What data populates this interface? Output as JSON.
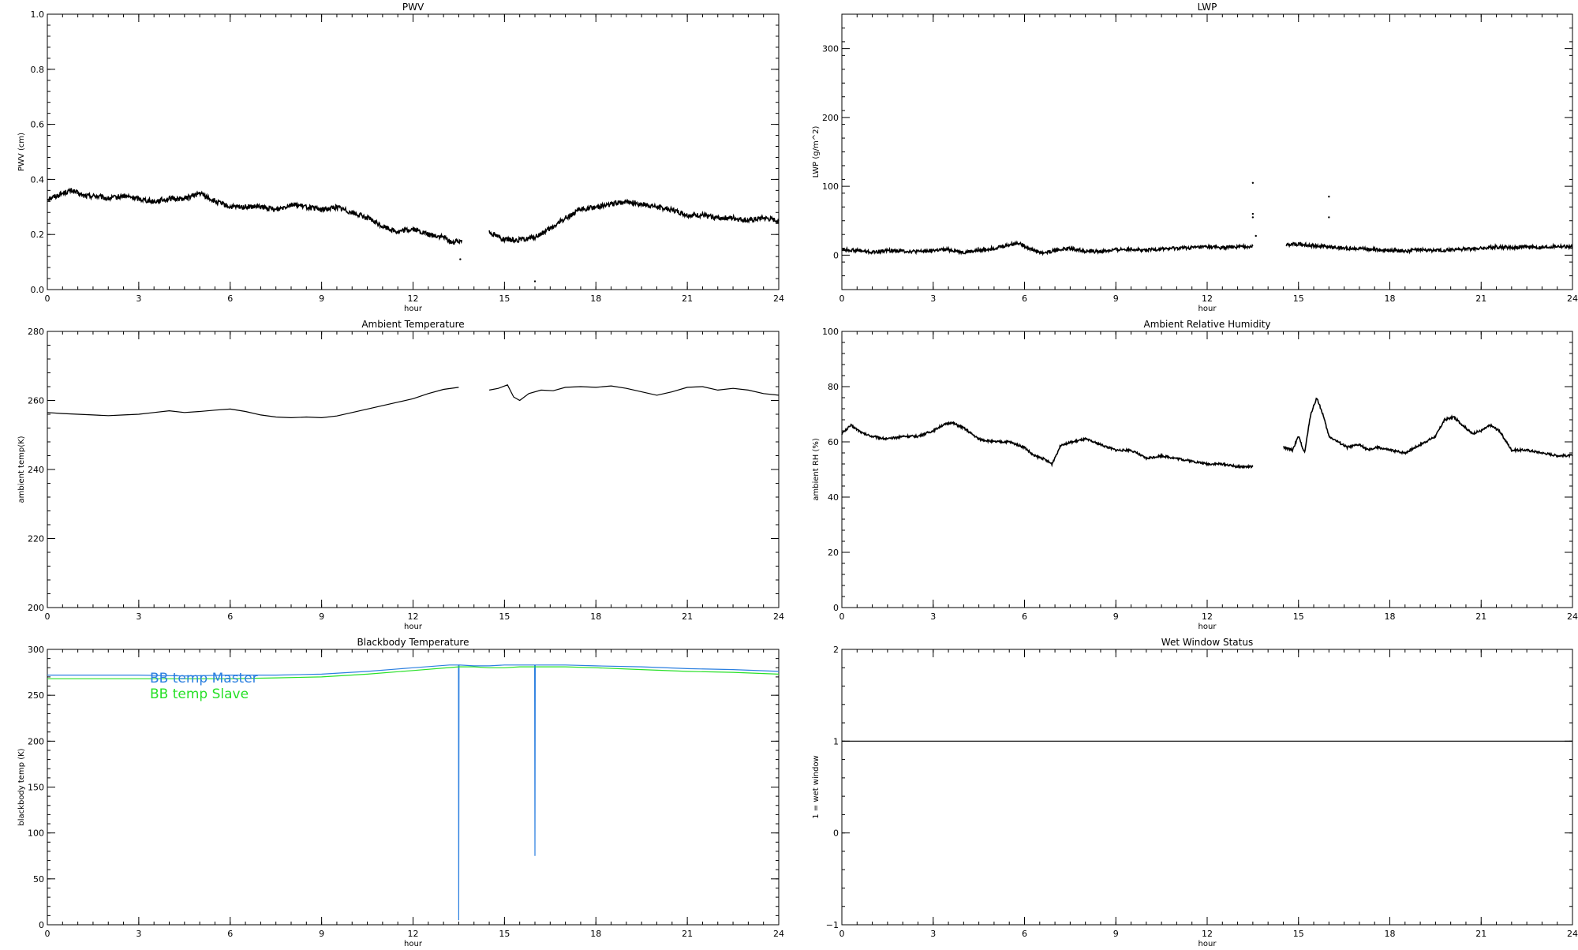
{
  "colors": {
    "axis": "#000000",
    "data": "#000000",
    "master": "#2b7fe0",
    "slave": "#27e027"
  },
  "chart_data": [
    {
      "id": "pwv",
      "type": "scatter",
      "title": "PWV",
      "xlabel": "hour",
      "ylabel": "PWV (cm)",
      "xlim": [
        0,
        24
      ],
      "ylim": [
        0,
        1
      ],
      "xticks": [
        "0",
        "3",
        "6",
        "9",
        "12",
        "15",
        "18",
        "21",
        "24"
      ],
      "yticks": [
        "0.0",
        "0.2",
        "0.4",
        "0.6",
        "0.8",
        "1.0"
      ],
      "series": [
        {
          "color": "#000000",
          "noise": 0.009,
          "x": [
            0,
            0.3,
            0.5,
            0.8,
            1.2,
            1.6,
            2,
            2.5,
            3,
            3.5,
            4,
            4.5,
            5,
            5.5,
            6,
            6.5,
            7,
            7.5,
            8,
            8.5,
            9,
            9.5,
            10,
            10.5,
            11,
            11.5,
            12,
            12.5,
            13,
            13.3,
            13.6,
            null,
            14.5,
            15,
            15.5,
            16,
            16.5,
            17,
            17.5,
            18,
            18.5,
            19,
            19.5,
            20,
            20.5,
            21,
            21.5,
            22,
            22.5,
            23,
            23.5,
            24
          ],
          "y": [
            0.33,
            0.34,
            0.35,
            0.36,
            0.34,
            0.34,
            0.33,
            0.34,
            0.33,
            0.32,
            0.33,
            0.33,
            0.35,
            0.32,
            0.3,
            0.3,
            0.3,
            0.29,
            0.31,
            0.3,
            0.29,
            0.3,
            0.28,
            0.26,
            0.23,
            0.21,
            0.22,
            0.2,
            0.19,
            0.17,
            0.18,
            null,
            0.21,
            0.18,
            0.18,
            0.19,
            0.22,
            0.26,
            0.29,
            0.3,
            0.31,
            0.32,
            0.31,
            0.3,
            0.29,
            0.27,
            0.27,
            0.26,
            0.26,
            0.25,
            0.26,
            0.25
          ]
        }
      ],
      "points": [
        [
          13.55,
          0.11
        ],
        [
          16.0,
          0.03
        ]
      ]
    },
    {
      "id": "lwp",
      "type": "scatter",
      "title": "LWP",
      "xlabel": "hour",
      "ylabel": "LWP (g/m^2)",
      "xlim": [
        0,
        24
      ],
      "ylim": [
        -50,
        350
      ],
      "xticks": [
        "0",
        "3",
        "6",
        "9",
        "12",
        "15",
        "18",
        "21",
        "24"
      ],
      "yticks": [
        "0",
        "100",
        "200",
        "300"
      ],
      "series": [
        {
          "color": "#000000",
          "noise": 2.5,
          "x": [
            0,
            0.5,
            1,
            1.5,
            2,
            2.5,
            3,
            3.5,
            4,
            4.5,
            5,
            5.5,
            5.8,
            6.2,
            6.6,
            7,
            7.5,
            8,
            8.5,
            9,
            9.5,
            10,
            10.5,
            11,
            11.5,
            12,
            12.5,
            13,
            13.5,
            null,
            14.6,
            15,
            15.5,
            16,
            16.5,
            17,
            17.5,
            18,
            18.5,
            19,
            19.5,
            20,
            20.5,
            21,
            21.5,
            22,
            22.5,
            23,
            23.5,
            24
          ],
          "y": [
            8,
            7,
            4,
            7,
            6,
            5,
            7,
            8,
            4,
            7,
            10,
            15,
            18,
            9,
            3,
            7,
            10,
            6,
            5,
            8,
            9,
            7,
            9,
            10,
            11,
            12,
            11,
            12,
            13,
            null,
            15,
            16,
            14,
            12,
            10,
            10,
            8,
            7,
            6,
            8,
            7,
            8,
            9,
            10,
            12,
            11,
            12,
            11,
            13,
            12
          ]
        }
      ],
      "points": [
        [
          13.5,
          105
        ],
        [
          13.5,
          60
        ],
        [
          13.5,
          55
        ],
        [
          13.6,
          28
        ],
        [
          16.0,
          85
        ],
        [
          16.0,
          55
        ]
      ]
    },
    {
      "id": "ambient-temp",
      "type": "line",
      "title": "Ambient Temperature",
      "xlabel": "hour",
      "ylabel": "ambient temp(K)",
      "xlim": [
        0,
        24
      ],
      "ylim": [
        200,
        280
      ],
      "xticks": [
        "0",
        "3",
        "6",
        "9",
        "12",
        "15",
        "18",
        "21",
        "24"
      ],
      "yticks": [
        "200",
        "220",
        "240",
        "260",
        "280"
      ],
      "series": [
        {
          "color": "#000000",
          "noise": 0,
          "x": [
            0,
            0.5,
            1,
            1.5,
            2,
            2.5,
            3,
            3.5,
            4,
            4.5,
            5,
            5.5,
            6,
            6.5,
            7,
            7.5,
            8,
            8.5,
            9,
            9.5,
            10,
            10.5,
            11,
            11.5,
            12,
            12.5,
            13,
            13.5,
            null,
            14.5,
            14.8,
            15.1,
            15.3,
            15.5,
            15.8,
            16.2,
            16.6,
            17,
            17.5,
            18,
            18.5,
            19,
            19.5,
            20,
            20.5,
            21,
            21.5,
            22,
            22.5,
            23,
            23.5,
            24
          ],
          "y": [
            256.5,
            256.2,
            256.0,
            255.8,
            255.6,
            255.8,
            256.0,
            256.5,
            257.0,
            256.5,
            256.8,
            257.2,
            257.5,
            256.8,
            255.8,
            255.2,
            255.0,
            255.2,
            255.0,
            255.5,
            256.5,
            257.5,
            258.5,
            259.5,
            260.5,
            262.0,
            263.2,
            263.8,
            null,
            263.0,
            263.5,
            264.5,
            261.0,
            260.0,
            262.0,
            263.0,
            262.8,
            263.8,
            264.0,
            263.8,
            264.2,
            263.5,
            262.5,
            261.5,
            262.5,
            263.8,
            264.0,
            263.0,
            263.5,
            263.0,
            262.0,
            261.5
          ]
        }
      ]
    },
    {
      "id": "ambient-rh",
      "type": "scatter",
      "title": "Ambient Relative Humidity",
      "xlabel": "hour",
      "ylabel": "ambient RH (%)",
      "xlim": [
        0,
        24
      ],
      "ylim": [
        0,
        100
      ],
      "xticks": [
        "0",
        "3",
        "6",
        "9",
        "12",
        "15",
        "18",
        "21",
        "24"
      ],
      "yticks": [
        "0",
        "20",
        "40",
        "60",
        "80",
        "100"
      ],
      "series": [
        {
          "color": "#000000",
          "noise": 0.4,
          "x": [
            0,
            0.3,
            0.7,
            1,
            1.5,
            2,
            2.5,
            3,
            3.3,
            3.6,
            4,
            4.5,
            5,
            5.5,
            6,
            6.3,
            6.6,
            6.9,
            7.2,
            7.6,
            8,
            8.5,
            9,
            9.5,
            10,
            10.5,
            11,
            11.5,
            12,
            12.5,
            13,
            13.5,
            null,
            14.5,
            14.8,
            15.0,
            15.2,
            15.4,
            15.6,
            15.8,
            16.0,
            16.3,
            16.6,
            17,
            17.3,
            17.6,
            18,
            18.5,
            19,
            19.5,
            19.8,
            20.1,
            20.4,
            20.7,
            21,
            21.3,
            21.6,
            22,
            22.5,
            23,
            23.5,
            24
          ],
          "y": [
            63,
            66,
            63,
            62,
            61,
            62,
            62,
            64,
            66,
            67,
            65,
            61,
            60,
            60,
            58,
            55,
            54,
            52,
            59,
            60,
            61,
            59,
            57,
            57,
            54,
            55,
            54,
            53,
            52,
            52,
            51,
            51,
            null,
            58,
            57,
            62,
            56,
            70,
            76,
            70,
            62,
            60,
            58,
            59,
            57,
            58,
            57,
            56,
            59,
            62,
            68,
            69,
            66,
            63,
            64,
            66,
            64,
            57,
            57,
            56,
            55,
            55
          ]
        }
      ]
    },
    {
      "id": "bb-temp",
      "type": "line",
      "title": "Blackbody Temperature",
      "xlabel": "hour",
      "ylabel": "blackbody temp (K)",
      "xlim": [
        0,
        24
      ],
      "ylim": [
        0,
        300
      ],
      "xticks": [
        "0",
        "3",
        "6",
        "9",
        "12",
        "15",
        "18",
        "21",
        "24"
      ],
      "yticks": [
        "0",
        "50",
        "100",
        "150",
        "200",
        "250",
        "300"
      ],
      "legend": [
        "BB temp Master",
        "BB temp Slave"
      ],
      "legend_placement": "top-left",
      "series": [
        {
          "name": "BB temp Master",
          "color": "#2b7fe0",
          "noise": 0,
          "x": [
            0,
            1.5,
            3,
            4.5,
            6,
            7.5,
            9,
            10.5,
            12,
            13.2,
            13.49,
            13.5,
            13.51,
            14,
            14.5,
            15,
            15.5,
            15.99,
            16,
            16.01,
            17,
            18,
            19.5,
            21,
            22.5,
            24
          ],
          "y": [
            272,
            272,
            272,
            271,
            272,
            272,
            273,
            276,
            280,
            283,
            283,
            5,
            283,
            282,
            282,
            283,
            283,
            283,
            75,
            283,
            283,
            282,
            281,
            279,
            278,
            276
          ]
        },
        {
          "name": "BB temp Slave",
          "color": "#27e027",
          "noise": 0,
          "x": [
            0,
            1.5,
            3,
            4.5,
            6,
            7.5,
            9,
            10.5,
            12,
            13.5,
            14,
            14.5,
            15,
            15.5,
            16,
            17,
            18,
            19.5,
            21,
            22.5,
            24
          ],
          "y": [
            268,
            268,
            268,
            268,
            268,
            269,
            270,
            273,
            277,
            281,
            281,
            280,
            280,
            281,
            281,
            281,
            280,
            278,
            276,
            275,
            273
          ]
        }
      ]
    },
    {
      "id": "wet-window",
      "type": "line",
      "title": "Wet Window Status",
      "xlabel": "hour",
      "ylabel": "1 = wet window",
      "xlim": [
        0,
        24
      ],
      "ylim": [
        -1,
        2
      ],
      "xticks": [
        "0",
        "3",
        "6",
        "9",
        "12",
        "15",
        "18",
        "21",
        "24"
      ],
      "yticks": [
        "−1",
        "0",
        "1",
        "2"
      ],
      "series": [
        {
          "color": "#000000",
          "noise": 0,
          "x": [
            0,
            24
          ],
          "y": [
            1,
            1
          ]
        }
      ]
    }
  ]
}
